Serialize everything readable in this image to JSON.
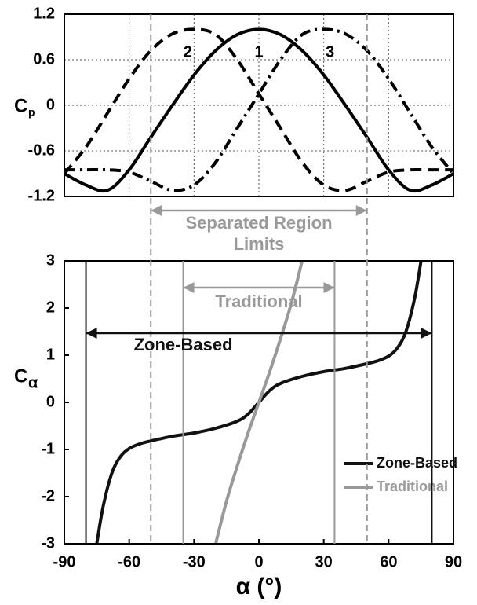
{
  "chart_data": [
    {
      "type": "line",
      "ylabel": "C",
      "ylabel_sub": "p",
      "x": [
        -90,
        -80,
        -70,
        -60,
        -50,
        -40,
        -30,
        -20,
        -10,
        0,
        10,
        20,
        30,
        40,
        50,
        60,
        70,
        80,
        90
      ],
      "series": [
        {
          "name": "1",
          "color": "#000000",
          "style": "solid",
          "values": [
            -0.9,
            -1.05,
            -1.12,
            -0.85,
            -0.42,
            0.0,
            0.4,
            0.72,
            0.93,
            1.0,
            0.93,
            0.72,
            0.4,
            0.0,
            -0.42,
            -0.85,
            -1.12,
            -1.05,
            -0.9
          ]
        },
        {
          "name": "2",
          "color": "#000000",
          "style": "dashed",
          "values": [
            -0.9,
            -0.55,
            -0.1,
            0.35,
            0.72,
            0.94,
            1.0,
            0.93,
            0.6,
            0.15,
            -0.3,
            -0.75,
            -1.05,
            -1.12,
            -1.0,
            -0.88,
            -0.85,
            -0.85,
            -0.85
          ]
        },
        {
          "name": "3",
          "color": "#000000",
          "style": "dashdot",
          "values": [
            -0.85,
            -0.85,
            -0.85,
            -0.88,
            -1.0,
            -1.12,
            -1.05,
            -0.75,
            -0.3,
            0.15,
            0.6,
            0.93,
            1.0,
            0.94,
            0.72,
            0.35,
            -0.1,
            -0.55,
            -0.9
          ]
        }
      ],
      "xlim": [
        -90,
        90
      ],
      "xticks": [
        -90,
        -60,
        -30,
        0,
        30,
        60,
        90
      ],
      "ylim": [
        -1.2,
        1.2
      ],
      "yticks": [
        1.2,
        0.6,
        0,
        -0.6,
        -1.2
      ],
      "grid": true
    },
    {
      "type": "line",
      "ylabel": "C",
      "ylabel_sub": "α",
      "xlabel": "α (°)",
      "series": [
        {
          "name": "Zone-Based",
          "color": "#111111",
          "style": "solid",
          "x": [
            -75,
            -72,
            -68,
            -64,
            -60,
            -55,
            -50,
            -40,
            -30,
            -20,
            -10,
            -5,
            0,
            5,
            10,
            20,
            30,
            40,
            50,
            55,
            60,
            64,
            68,
            72,
            75
          ],
          "values": [
            -3,
            -2.2,
            -1.5,
            -1.15,
            -0.98,
            -0.88,
            -0.82,
            -0.72,
            -0.65,
            -0.55,
            -0.4,
            -0.25,
            0,
            0.25,
            0.4,
            0.55,
            0.65,
            0.72,
            0.82,
            0.88,
            0.98,
            1.15,
            1.5,
            2.2,
            3
          ]
        },
        {
          "name": "Traditional",
          "color": "#999999",
          "style": "solid",
          "x": [
            -20,
            -15,
            -10,
            -5,
            0,
            5,
            10,
            15,
            20
          ],
          "values": [
            -3,
            -2.1,
            -1.35,
            -0.65,
            0,
            0.65,
            1.35,
            2.1,
            3
          ]
        }
      ],
      "xlim": [
        -90,
        90
      ],
      "xticks": [
        -90,
        -60,
        -30,
        0,
        30,
        60,
        90
      ],
      "ylim": [
        -3,
        3
      ],
      "yticks": [
        3,
        2,
        1,
        0,
        -1,
        -2,
        -3
      ],
      "grid": false,
      "legend": "lower right"
    }
  ],
  "regions": [
    {
      "label": [
        "Separated Region",
        "Limits"
      ],
      "limits": [
        -50,
        50
      ],
      "color": "#999999",
      "style": "dashed"
    },
    {
      "label": [
        "Traditional"
      ],
      "limits": [
        -35,
        35
      ],
      "color": "#999999",
      "style": "solid"
    },
    {
      "label": [
        "Zone-Based"
      ],
      "limits": [
        -80,
        80
      ],
      "color": "#111111",
      "style": "solid"
    }
  ]
}
